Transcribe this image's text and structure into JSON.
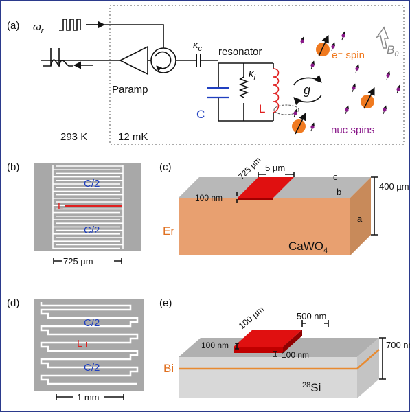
{
  "panel_a": {
    "label": "(a)",
    "drive": {
      "symbol": "ω",
      "subscript": "r"
    },
    "amplifier": "Paramp",
    "coupling": {
      "symbol": "κ",
      "subscript": "c"
    },
    "resonator": "resonator",
    "internal_loss": {
      "symbol": "κ",
      "subscript": "i"
    },
    "capacitor": "C",
    "inductor": "L",
    "coupling_g": "g",
    "electron_spin": "e⁻ spin",
    "field": {
      "symbol": "B",
      "subscript": "0"
    },
    "nuclear_spins": "nuc spins",
    "room_temp": "293 K",
    "cold_temp": "12 mK"
  },
  "panel_b": {
    "label": "(b)",
    "top_capacitor": "C/2",
    "bottom_capacitor": "C/2",
    "inductor": "L",
    "width": "725 µm"
  },
  "panel_c": {
    "label": "(c)",
    "length": "725 µm",
    "wire_width": "5 µm",
    "thickness": "100 nm",
    "axis_c": "c",
    "axis_b": "b",
    "axis_a": "a",
    "height": "400 µm",
    "dopant": "Er",
    "substrate": {
      "text": "CaWO",
      "subscript": "4"
    }
  },
  "panel_d": {
    "label": "(d)",
    "top_capacitor": "C/2",
    "bottom_capacitor": "C/2",
    "inductor": "L",
    "width": "1 mm"
  },
  "panel_e": {
    "label": "(e)",
    "length": "100 µm",
    "wire_width": "500 nm",
    "thickness": "100 nm",
    "depth": "100 nm",
    "height": "700 nm",
    "dopant": "Bi",
    "substrate": {
      "superscript": "28",
      "text": "Si"
    }
  }
}
